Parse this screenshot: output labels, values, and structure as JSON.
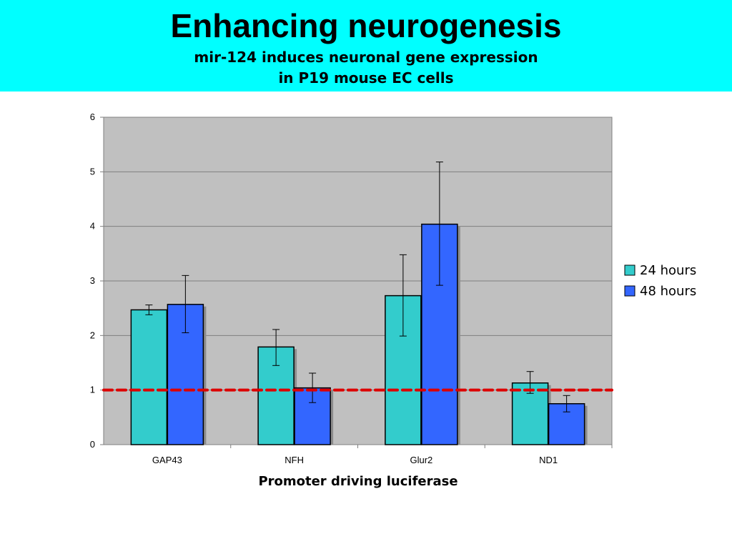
{
  "slide": {
    "title": "Enhancing neurogenesis",
    "subtitle_line1": "mir-124 induces neuronal gene expression",
    "subtitle_line2": "in P19 mouse EC cells"
  },
  "colors": {
    "banner": "#00ffff",
    "plot_bg": "#c0c0c0",
    "series_24h": "#33cccc",
    "series_48h": "#3366ff",
    "baseline": "#dd0000"
  },
  "chart_data": {
    "type": "bar",
    "title": "",
    "xlabel": "Promoter driving luciferase",
    "ylabel": "",
    "ylim": [
      0,
      6
    ],
    "yticks": [
      "0",
      "1",
      "2",
      "3",
      "4",
      "5",
      "6"
    ],
    "grid": true,
    "legend_position": "right",
    "categories": [
      "GAP43",
      "NFH",
      "Glur2",
      "ND1"
    ],
    "series": [
      {
        "name": "24 hours",
        "values": [
          2.47,
          1.79,
          2.73,
          1.13
        ],
        "error_low": [
          2.38,
          1.45,
          1.99,
          0.94
        ],
        "error_high": [
          2.56,
          2.11,
          3.48,
          1.34
        ]
      },
      {
        "name": "48 hours",
        "values": [
          2.57,
          1.04,
          4.04,
          0.75
        ],
        "error_low": [
          2.05,
          0.77,
          2.92,
          0.6
        ],
        "error_high": [
          3.1,
          1.31,
          5.18,
          0.9
        ]
      }
    ],
    "reference_line": {
      "y": 1,
      "style": "dashed"
    }
  }
}
